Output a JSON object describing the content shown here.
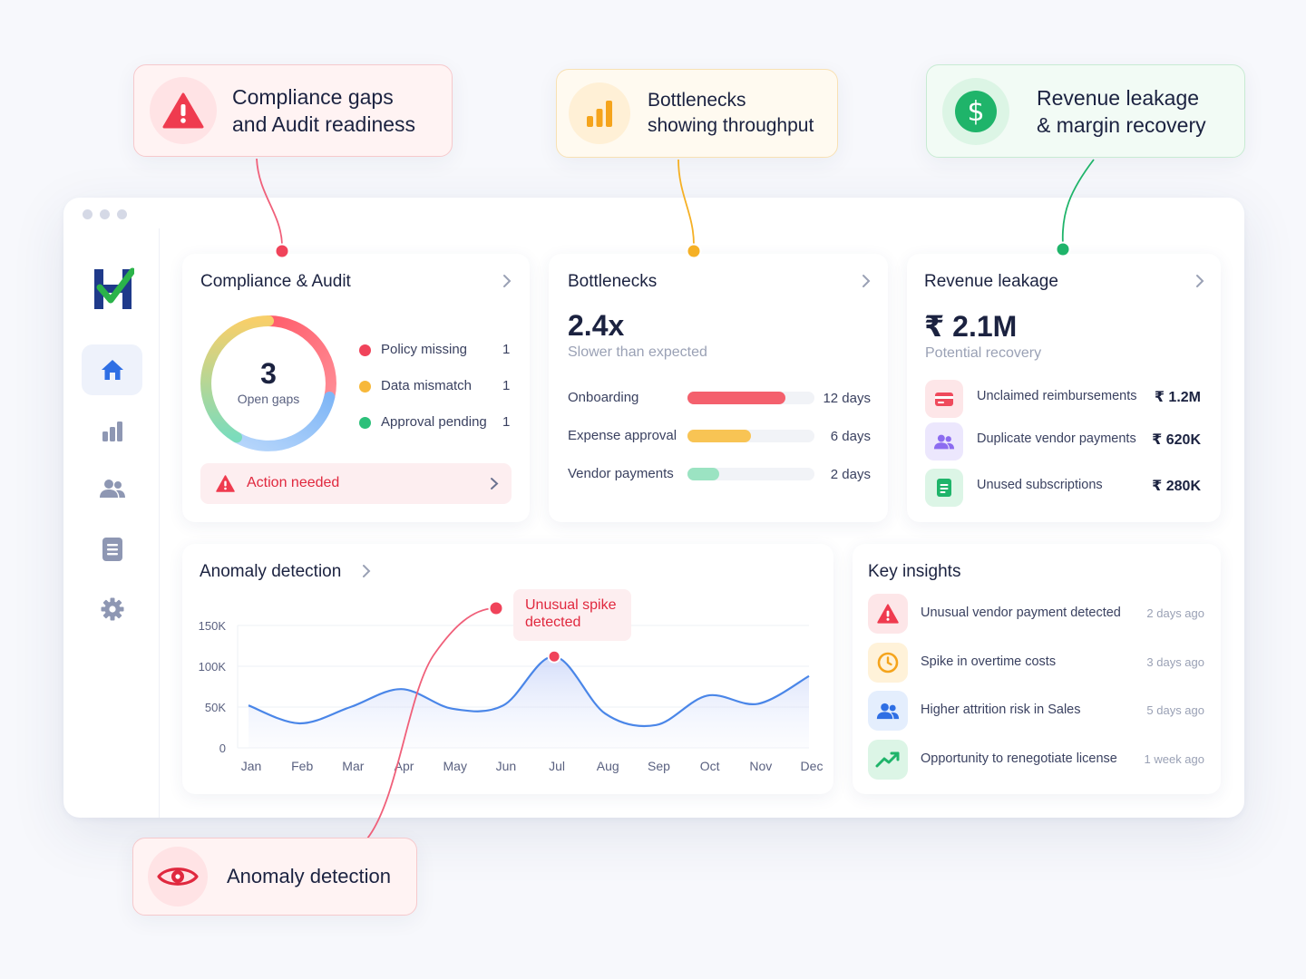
{
  "callouts": {
    "compliance": {
      "line1": "Compliance gaps",
      "line2": "and Audit readiness"
    },
    "bottlenecks": {
      "line1": "Bottlenecks",
      "line2": "showing throughput"
    },
    "revenue": {
      "line1": "Revenue leakage",
      "line2": "& margin recovery"
    },
    "anomaly": {
      "label": "Anomaly detection"
    }
  },
  "sidebar": {
    "items": [
      {
        "name": "home",
        "icon": "home-icon",
        "active": true
      },
      {
        "name": "analytics",
        "icon": "bar-chart-icon",
        "active": false
      },
      {
        "name": "people",
        "icon": "users-icon",
        "active": false
      },
      {
        "name": "documents",
        "icon": "document-icon",
        "active": false
      },
      {
        "name": "settings",
        "icon": "gear-icon",
        "active": false
      }
    ]
  },
  "compliance": {
    "title": "Compliance & Audit",
    "open_gaps_count": "3",
    "open_gaps_label": "Open gaps",
    "items": [
      {
        "label": "Policy missing",
        "count": "1",
        "color": "#f0435a"
      },
      {
        "label": "Data mismatch",
        "count": "1",
        "color": "#f7b83a"
      },
      {
        "label": "Approval pending",
        "count": "1",
        "color": "#2cc07a"
      }
    ],
    "action_label": "Action needed"
  },
  "bottlenecks": {
    "title": "Bottlenecks",
    "metric": "2.4x",
    "subtitle": "Slower than expected",
    "rows": [
      {
        "label": "Onboarding",
        "value": "12 days",
        "fill": 0.77,
        "color": "#f4606d"
      },
      {
        "label": "Expense approval",
        "value": "6 days",
        "fill": 0.5,
        "color": "#f8c454"
      },
      {
        "label": "Vendor payments",
        "value": "2 days",
        "fill": 0.25,
        "color": "#9be3c2"
      }
    ]
  },
  "revenue": {
    "title": "Revenue leakage",
    "metric": "₹ 2.1M",
    "subtitle": "Potential recovery",
    "rows": [
      {
        "label": "Unclaimed reimbursements",
        "value": "₹ 1.2M",
        "icon": "card-icon"
      },
      {
        "label": "Duplicate vendor payments",
        "value": "₹ 620K",
        "icon": "users-icon"
      },
      {
        "label": "Unused subscriptions",
        "value": "₹ 280K",
        "icon": "document-icon"
      }
    ]
  },
  "anomaly": {
    "title": "Anomaly detection",
    "tooltip_line1": "Unusual spike",
    "tooltip_line2": "detected"
  },
  "chart_data": {
    "type": "area",
    "categories": [
      "Jan",
      "Feb",
      "Mar",
      "Apr",
      "May",
      "Jun",
      "Jul",
      "Aug",
      "Sep",
      "Oct",
      "Nov",
      "Dec"
    ],
    "y_ticks": [
      "150K",
      "100K",
      "50K",
      "0"
    ],
    "ylim": [
      0,
      150000
    ],
    "series": [
      {
        "values": [
          52000,
          30000,
          50000,
          72000,
          48000,
          52000,
          112000,
          42000,
          28000,
          64000,
          54000,
          88000
        ]
      }
    ],
    "annotation": {
      "category": "Jul",
      "text": "Unusual spike detected"
    }
  },
  "insights": {
    "title": "Key insights",
    "items": [
      {
        "label": "Unusual vendor payment detected",
        "time": "2 days ago",
        "icon": "warning-icon"
      },
      {
        "label": "Spike in overtime costs",
        "time": "3 days ago",
        "icon": "clock-icon"
      },
      {
        "label": "Higher attrition risk in Sales",
        "time": "5 days ago",
        "icon": "users-icon"
      },
      {
        "label": "Opportunity to renegotiate license",
        "time": "1 week ago",
        "icon": "trend-up-icon"
      }
    ]
  }
}
